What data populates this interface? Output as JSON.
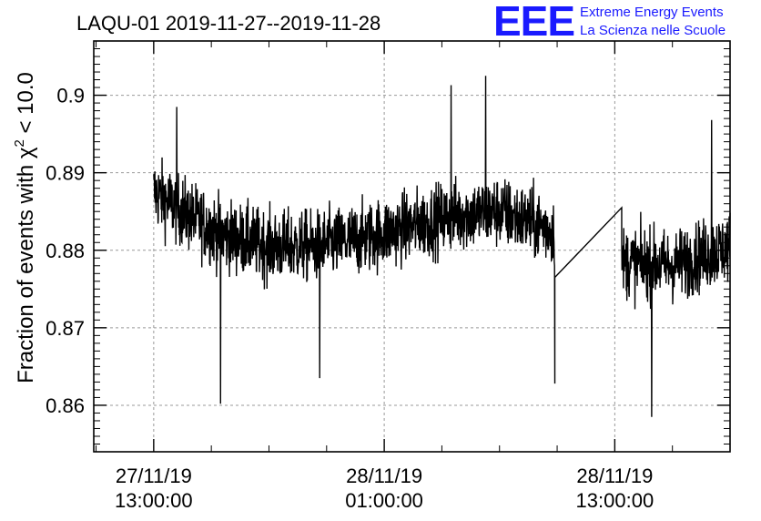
{
  "chart_data": {
    "type": "line",
    "title": "LAQU-01 2019-11-27--2019-11-28",
    "ylabel": "Fraction of events with χ² < 10.0",
    "ylabel_base": "Fraction of events with χ",
    "ylabel_sup": "2",
    "ylabel_tail": " < 10.0",
    "xlabel": "",
    "xlim_hours": [
      -2.6,
      25.0
    ],
    "ylim": [
      0.854,
      0.907
    ],
    "grid": true,
    "yticks": [
      {
        "value": 0.86,
        "label": "0.86"
      },
      {
        "value": 0.87,
        "label": "0.87"
      },
      {
        "value": 0.88,
        "label": "0.88"
      },
      {
        "value": 0.89,
        "label": "0.89"
      },
      {
        "value": 0.9,
        "label": "0.9"
      }
    ],
    "xticks": [
      {
        "value": 0,
        "date": "27/11/19",
        "time": "13:00:00"
      },
      {
        "value": 10,
        "date": "28/11/19",
        "time": "01:00:00"
      },
      {
        "value": 20,
        "date": "28/11/19",
        "time": "13:00:00"
      }
    ],
    "series": [
      {
        "name": "fraction",
        "segments": [
          {
            "start_hour": 0.0,
            "end_hour": 17.4,
            "baseline": [
              {
                "hour": 0.0,
                "value": 0.8875
              },
              {
                "hour": 1.5,
                "value": 0.8845
              },
              {
                "hour": 3.0,
                "value": 0.882
              },
              {
                "hour": 5.0,
                "value": 0.8805
              },
              {
                "hour": 7.0,
                "value": 0.8805
              },
              {
                "hour": 9.0,
                "value": 0.8815
              },
              {
                "hour": 11.0,
                "value": 0.883
              },
              {
                "hour": 13.0,
                "value": 0.8845
              },
              {
                "hour": 15.0,
                "value": 0.885
              },
              {
                "hour": 17.4,
                "value": 0.8825
              }
            ],
            "spread": 0.0045,
            "last_value": 0.8765
          },
          {
            "start_hour": 20.3,
            "end_hour": 25.0,
            "first_value": 0.8855,
            "baseline": [
              {
                "hour": 20.3,
                "value": 0.8785
              },
              {
                "hour": 22.5,
                "value": 0.878
              },
              {
                "hour": 25.0,
                "value": 0.8805
              }
            ],
            "spread": 0.0045
          }
        ],
        "extremes": [
          {
            "hour": 1.0,
            "value": 0.8985
          },
          {
            "hour": 2.9,
            "value": 0.8602
          },
          {
            "hour": 7.2,
            "value": 0.8635
          },
          {
            "hour": 12.9,
            "value": 0.9013
          },
          {
            "hour": 14.4,
            "value": 0.9025
          },
          {
            "hour": 17.4,
            "value": 0.8628
          },
          {
            "hour": 21.6,
            "value": 0.8585
          },
          {
            "hour": 24.2,
            "value": 0.8968
          }
        ]
      }
    ]
  },
  "logo": {
    "mark": "EEE",
    "line1": "Extreme Energy Events",
    "line2": "La Scienza nelle Scuole",
    "color": "#1a1aff"
  }
}
